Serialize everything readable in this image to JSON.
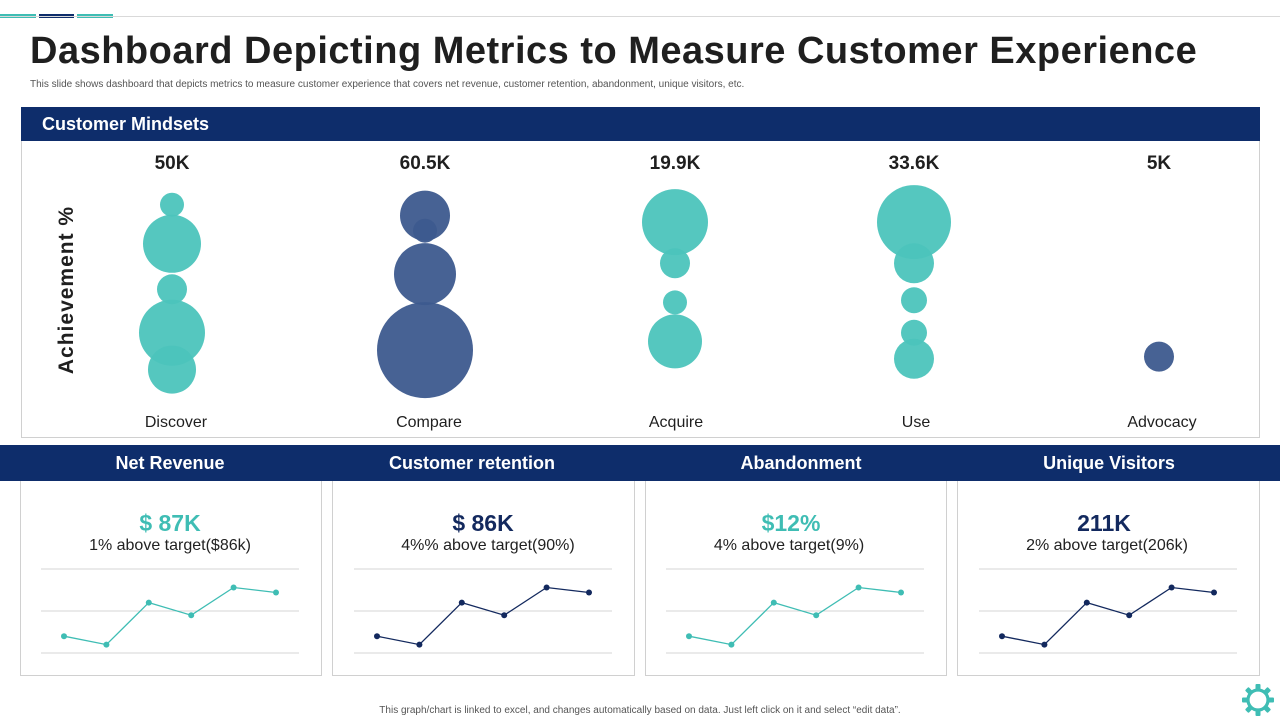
{
  "header": {
    "title": "Dashboard Depicting Metrics to Measure Customer Experience",
    "subtitle": "This slide shows dashboard that depicts metrics to measure customer experience that covers net revenue, customer retention, abandonment, unique visitors, etc."
  },
  "colors": {
    "navy": "#0e2d6b",
    "teal": "#3fbdb4",
    "bubble_teal": "#4cc4bc",
    "bubble_navy": "#3d5a8e",
    "dark_navy": "#13295e"
  },
  "mindsets": {
    "section_title": "Customer Mindsets",
    "ylabel": "Achievement %"
  },
  "chart_data": [
    {
      "type": "bubble",
      "title": "Customer Mindsets",
      "ylabel": "Achievement %",
      "categories": [
        "Discover",
        "Compare",
        "Acquire",
        "Use",
        "Advocacy"
      ],
      "totals": [
        "50K",
        "60.5K",
        "19.9K",
        "33.6K",
        "5K"
      ],
      "ylim": [
        0,
        100
      ],
      "series": [
        {
          "category": "Discover",
          "bubbles": [
            {
              "achievement": 90,
              "size": 12,
              "tone": "teal"
            },
            {
              "achievement": 72,
              "size": 29,
              "tone": "teal"
            },
            {
              "achievement": 51,
              "size": 15,
              "tone": "teal"
            },
            {
              "achievement": 31,
              "size": 33,
              "tone": "teal"
            },
            {
              "achievement": 14,
              "size": 24,
              "tone": "teal"
            }
          ]
        },
        {
          "category": "Compare",
          "bubbles": [
            {
              "achievement": 85,
              "size": 25,
              "tone": "navy"
            },
            {
              "achievement": 78,
              "size": 12,
              "tone": "navy"
            },
            {
              "achievement": 58,
              "size": 31,
              "tone": "navy"
            },
            {
              "achievement": 23,
              "size": 48,
              "tone": "navy"
            }
          ]
        },
        {
          "category": "Acquire",
          "bubbles": [
            {
              "achievement": 82,
              "size": 33,
              "tone": "teal"
            },
            {
              "achievement": 63,
              "size": 15,
              "tone": "teal"
            },
            {
              "achievement": 45,
              "size": 12,
              "tone": "teal"
            },
            {
              "achievement": 27,
              "size": 27,
              "tone": "teal"
            }
          ]
        },
        {
          "category": "Use",
          "bubbles": [
            {
              "achievement": 82,
              "size": 37,
              "tone": "teal"
            },
            {
              "achievement": 63,
              "size": 20,
              "tone": "teal"
            },
            {
              "achievement": 46,
              "size": 13,
              "tone": "teal"
            },
            {
              "achievement": 31,
              "size": 13,
              "tone": "teal"
            },
            {
              "achievement": 19,
              "size": 20,
              "tone": "teal"
            }
          ]
        },
        {
          "category": "Advocacy",
          "bubbles": [
            {
              "achievement": 20,
              "size": 15,
              "tone": "navy"
            }
          ]
        }
      ]
    },
    {
      "type": "line",
      "title": "Net Revenue",
      "x": [
        1,
        2,
        3,
        4,
        5,
        6
      ],
      "values": [
        20,
        10,
        60,
        45,
        78,
        72
      ],
      "ylim": [
        0,
        100
      ],
      "color": "#3fbdb4"
    },
    {
      "type": "line",
      "title": "Customer retention",
      "x": [
        1,
        2,
        3,
        4,
        5,
        6
      ],
      "values": [
        20,
        10,
        60,
        45,
        78,
        72
      ],
      "ylim": [
        0,
        100
      ],
      "color": "#13295e"
    },
    {
      "type": "line",
      "title": "Abandonment",
      "x": [
        1,
        2,
        3,
        4,
        5,
        6
      ],
      "values": [
        20,
        10,
        60,
        45,
        78,
        72
      ],
      "ylim": [
        0,
        100
      ],
      "color": "#3fbdb4"
    },
    {
      "type": "line",
      "title": "Unique Visitors",
      "x": [
        1,
        2,
        3,
        4,
        5,
        6
      ],
      "values": [
        20,
        10,
        60,
        45,
        78,
        72
      ],
      "ylim": [
        0,
        100
      ],
      "color": "#13295e"
    }
  ],
  "kpis": [
    {
      "title": "Net Revenue",
      "value": "$ 87K",
      "sub": "1% above target($86k)",
      "color": "#3fbdb4"
    },
    {
      "title": "Customer retention",
      "value": "$ 86K",
      "sub": "4%% above target(90%)",
      "color": "#13295e"
    },
    {
      "title": "Abandonment",
      "value": "$12%",
      "sub": "4% above target(9%)",
      "color": "#3fbdb4"
    },
    {
      "title": "Unique Visitors",
      "value": "211K",
      "sub": "2% above target(206k)",
      "color": "#13295e"
    }
  ],
  "footer": {
    "note": "This graph/chart is linked to excel, and changes automatically based on data. Just left click on it and select “edit data”."
  }
}
